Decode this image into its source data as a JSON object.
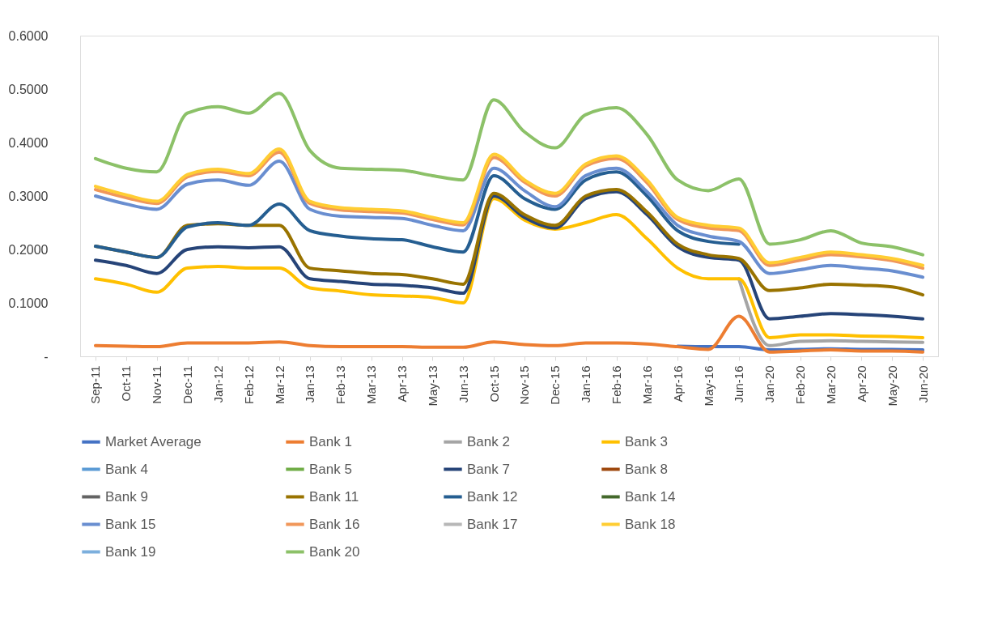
{
  "chart_data": {
    "type": "line",
    "categories": [
      "Sep-11",
      "Oct-11",
      "Nov-11",
      "Dec-11",
      "Jan-12",
      "Feb-12",
      "Mar-12",
      "Jan-13",
      "Feb-13",
      "Mar-13",
      "Apr-13",
      "May-13",
      "Jun-13",
      "Oct-15",
      "Nov-15",
      "Dec-15",
      "Jan-16",
      "Feb-16",
      "Mar-16",
      "Apr-16",
      "May-16",
      "Jun-16",
      "Jan-20",
      "Feb-20",
      "Mar-20",
      "Apr-20",
      "May-20",
      "Jun-20"
    ],
    "ylim": [
      0,
      0.6
    ],
    "yticks": [
      {
        "value": 0,
        "label": "-"
      },
      {
        "value": 0.1,
        "label": "0.1000"
      },
      {
        "value": 0.2,
        "label": "0.2000"
      },
      {
        "value": 0.3,
        "label": "0.3000"
      },
      {
        "value": 0.4,
        "label": "0.4000"
      },
      {
        "value": 0.5,
        "label": "0.5000"
      },
      {
        "value": 0.6,
        "label": "0.6000"
      }
    ],
    "grid": false,
    "legend": "bottom",
    "marker": "none",
    "line_style": "solid",
    "series": [
      {
        "name": "Market Average",
        "color": "#4472c4",
        "values": [
          null,
          null,
          null,
          null,
          null,
          null,
          null,
          null,
          null,
          null,
          null,
          null,
          null,
          null,
          null,
          null,
          null,
          null,
          null,
          0.019,
          0.018,
          0.018,
          0.012,
          0.013,
          0.014,
          0.013,
          0.013,
          0.012
        ]
      },
      {
        "name": "Bank 1",
        "color": "#ed7d31",
        "values": [
          0.02,
          0.019,
          0.018,
          0.025,
          0.025,
          0.025,
          0.027,
          0.02,
          0.018,
          0.018,
          0.018,
          0.017,
          0.017,
          0.027,
          0.022,
          0.02,
          0.025,
          0.025,
          0.023,
          0.018,
          0.013,
          0.075,
          0.008,
          0.01,
          0.012,
          0.01,
          0.01,
          0.008
        ]
      },
      {
        "name": "Bank 2",
        "color": "#a5a5a5",
        "values": [
          null,
          null,
          null,
          null,
          null,
          null,
          null,
          null,
          null,
          null,
          null,
          null,
          null,
          null,
          null,
          null,
          null,
          null,
          null,
          null,
          null,
          0.145,
          0.02,
          0.028,
          0.029,
          0.028,
          0.027,
          0.026
        ]
      },
      {
        "name": "Bank 3",
        "color": "#ffc000",
        "values": [
          0.145,
          0.135,
          0.12,
          0.165,
          0.168,
          0.165,
          0.165,
          0.128,
          0.122,
          0.115,
          0.113,
          0.11,
          0.1,
          0.295,
          0.255,
          0.238,
          0.25,
          0.265,
          0.22,
          0.165,
          0.145,
          0.145,
          0.035,
          0.04,
          0.04,
          0.038,
          0.037,
          0.035
        ]
      },
      {
        "name": "Bank 4",
        "color": "#5b9bd5",
        "values": [
          null,
          null,
          null,
          null,
          null,
          null,
          null,
          null,
          null,
          null,
          null,
          null,
          null,
          null,
          null,
          null,
          null,
          null,
          null,
          null,
          null,
          null,
          null,
          null,
          null,
          null,
          null,
          null
        ]
      },
      {
        "name": "Bank 5",
        "color": "#70ad47",
        "values": [
          null,
          null,
          null,
          null,
          null,
          null,
          null,
          null,
          null,
          null,
          null,
          null,
          null,
          null,
          null,
          null,
          null,
          null,
          null,
          null,
          null,
          null,
          null,
          null,
          null,
          null,
          null,
          null
        ]
      },
      {
        "name": "Bank 7",
        "color": "#264478",
        "values": [
          0.18,
          0.17,
          0.155,
          0.2,
          0.205,
          0.203,
          0.205,
          0.145,
          0.14,
          0.135,
          0.133,
          0.128,
          0.118,
          0.3,
          0.26,
          0.24,
          0.295,
          0.308,
          0.265,
          0.205,
          0.185,
          0.18,
          0.07,
          0.075,
          0.08,
          0.078,
          0.075,
          0.07
        ]
      },
      {
        "name": "Bank 8",
        "color": "#9e480e",
        "values": [
          null,
          null,
          null,
          null,
          null,
          null,
          null,
          null,
          null,
          null,
          null,
          null,
          null,
          null,
          null,
          null,
          null,
          null,
          null,
          null,
          null,
          null,
          null,
          null,
          null,
          null,
          null,
          null
        ]
      },
      {
        "name": "Bank 9",
        "color": "#636363",
        "values": [
          null,
          null,
          null,
          null,
          null,
          null,
          null,
          null,
          null,
          null,
          null,
          null,
          null,
          null,
          null,
          null,
          null,
          null,
          null,
          null,
          null,
          null,
          null,
          null,
          null,
          null,
          null,
          null
        ]
      },
      {
        "name": "Bank 11",
        "color": "#997300",
        "values": [
          0.206,
          0.195,
          0.185,
          0.245,
          0.248,
          0.245,
          0.245,
          0.165,
          0.16,
          0.155,
          0.153,
          0.145,
          0.135,
          0.305,
          0.265,
          0.245,
          0.3,
          0.312,
          0.27,
          0.21,
          0.19,
          0.183,
          0.123,
          0.128,
          0.135,
          0.133,
          0.13,
          0.115
        ]
      },
      {
        "name": "Bank 12",
        "color": "#255e91",
        "values": [
          0.206,
          0.195,
          0.185,
          0.242,
          0.25,
          0.245,
          0.285,
          0.235,
          0.225,
          0.22,
          0.218,
          0.205,
          0.195,
          0.338,
          0.295,
          0.275,
          0.33,
          0.345,
          0.3,
          0.235,
          0.215,
          0.21,
          null,
          null,
          null,
          null,
          null,
          null
        ]
      },
      {
        "name": "Bank 14",
        "color": "#43682b",
        "values": [
          null,
          null,
          null,
          null,
          null,
          null,
          null,
          null,
          null,
          null,
          null,
          null,
          null,
          null,
          null,
          null,
          null,
          null,
          null,
          null,
          null,
          null,
          null,
          null,
          null,
          null,
          null,
          null
        ]
      },
      {
        "name": "Bank 15",
        "color": "#698ed0",
        "values": [
          0.3,
          0.285,
          0.275,
          0.322,
          0.33,
          0.32,
          0.365,
          0.275,
          0.262,
          0.26,
          0.258,
          0.245,
          0.235,
          0.352,
          0.31,
          0.28,
          0.338,
          0.352,
          0.308,
          0.245,
          0.225,
          0.215,
          0.155,
          0.162,
          0.17,
          0.165,
          0.16,
          0.148
        ]
      },
      {
        "name": "Bank 16",
        "color": "#f1975a",
        "values": [
          0.312,
          0.297,
          0.286,
          0.336,
          0.346,
          0.338,
          0.382,
          0.286,
          0.274,
          0.271,
          0.268,
          0.256,
          0.246,
          0.372,
          0.326,
          0.3,
          0.356,
          0.37,
          0.325,
          0.256,
          0.24,
          0.235,
          0.17,
          0.18,
          0.19,
          0.186,
          0.179,
          0.165
        ]
      },
      {
        "name": "Bank 17",
        "color": "#b7b7b7",
        "values": [
          null,
          null,
          null,
          null,
          null,
          null,
          null,
          null,
          null,
          null,
          null,
          null,
          null,
          null,
          null,
          null,
          null,
          null,
          null,
          null,
          null,
          null,
          null,
          null,
          null,
          null,
          null,
          null
        ]
      },
      {
        "name": "Bank 18",
        "color": "#ffcd33",
        "values": [
          0.318,
          0.302,
          0.29,
          0.34,
          0.35,
          0.342,
          0.388,
          0.29,
          0.278,
          0.275,
          0.272,
          0.26,
          0.25,
          0.378,
          0.33,
          0.305,
          0.36,
          0.375,
          0.33,
          0.26,
          0.245,
          0.24,
          0.175,
          0.185,
          0.195,
          0.19,
          0.183,
          0.17
        ]
      },
      {
        "name": "Bank 19",
        "color": "#7cafdd",
        "values": [
          null,
          null,
          null,
          null,
          null,
          null,
          null,
          null,
          null,
          null,
          null,
          null,
          null,
          null,
          null,
          null,
          null,
          null,
          null,
          null,
          null,
          null,
          null,
          null,
          null,
          null,
          null,
          null
        ]
      },
      {
        "name": "Bank 20",
        "color": "#8cc168",
        "values": [
          0.37,
          0.352,
          0.345,
          0.455,
          0.467,
          0.455,
          0.492,
          0.385,
          0.352,
          0.35,
          0.348,
          0.338,
          0.33,
          0.48,
          0.42,
          0.39,
          0.452,
          0.465,
          0.415,
          0.33,
          0.31,
          0.332,
          0.21,
          0.218,
          0.235,
          0.212,
          0.205,
          0.19
        ]
      }
    ]
  }
}
